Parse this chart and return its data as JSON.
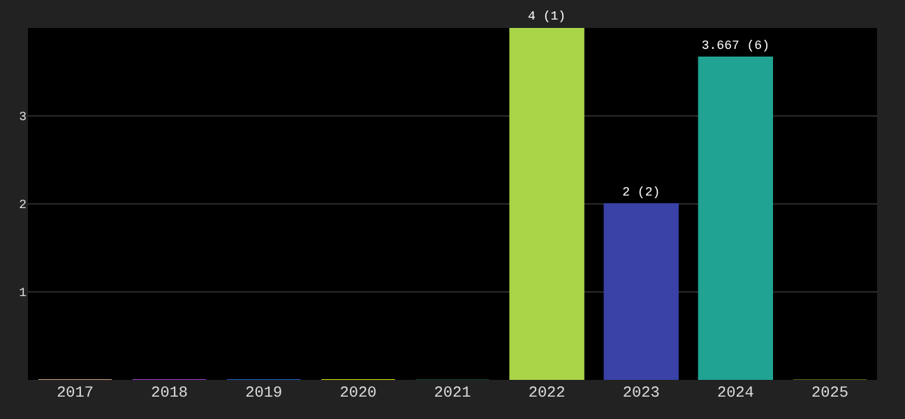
{
  "chart_data": {
    "type": "bar",
    "categories": [
      "2017",
      "2018",
      "2019",
      "2020",
      "2021",
      "2022",
      "2023",
      "2024",
      "2025"
    ],
    "values": [
      0,
      0,
      0,
      0,
      0,
      4,
      2,
      3.667,
      0
    ],
    "colors": [
      "#c8a07a",
      "#9b40c8",
      "#2060c0",
      "#e0e000",
      "#104030",
      "#aad548",
      "#3a42a8",
      "#20a393",
      "#606018"
    ],
    "value_labels": [
      null,
      null,
      null,
      null,
      null,
      "4 (1)",
      "2 (2)",
      "3.667 (6)",
      null
    ],
    "ylim": [
      0,
      4
    ],
    "yticks": [
      1,
      2,
      3
    ],
    "grid": "y",
    "legend": false
  }
}
